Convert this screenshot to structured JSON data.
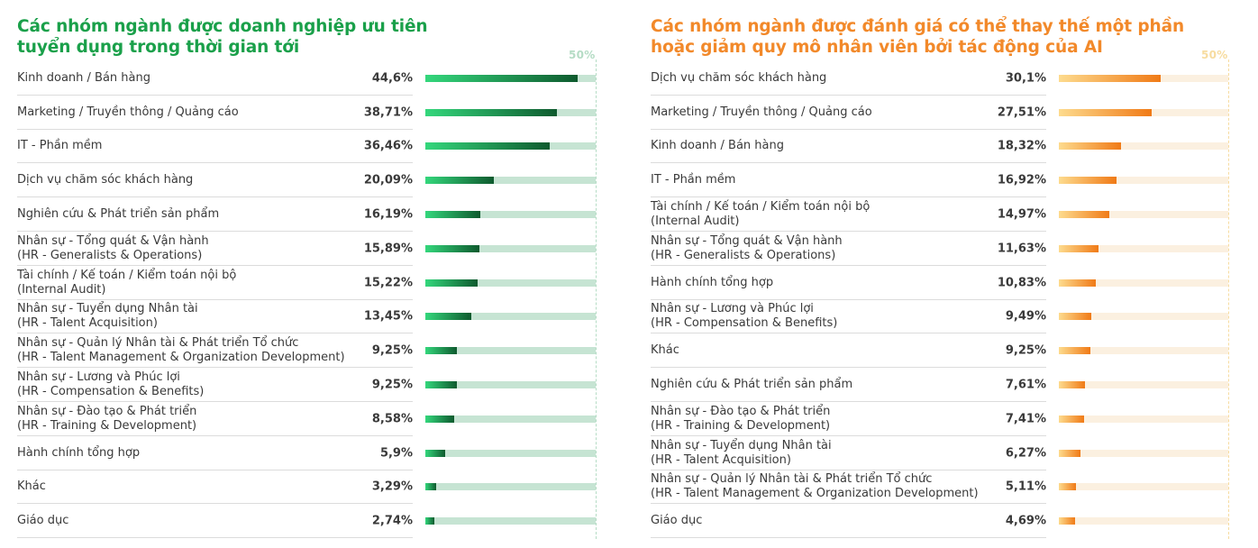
{
  "panels": [
    {
      "id": "left",
      "title_line1": "Các nhóm ngành được doanh nghiệp ưu tiên",
      "title_line2": "tuyển dụng trong thời gian tới",
      "scale_label": "50%",
      "colors": {
        "title": "#1aa04a",
        "scale": "#b5dcc5",
        "track": "#c6e4d3",
        "fill_start": "#34d77c",
        "fill_end": "#0e5a2e"
      }
    },
    {
      "id": "right",
      "title_line1": "Các nhóm ngành được đánh giá có thể thay thế một phần",
      "title_line2": "hoặc giảm quy mô nhân viên bởi tác động của AI",
      "scale_label": "50%",
      "colors": {
        "title": "#f2892a",
        "scale": "#f7dca0",
        "track": "#fbf0e0",
        "fill_start": "#fddb8e",
        "fill_end": "#f07a16"
      }
    }
  ],
  "chart_data": [
    {
      "type": "bar",
      "orientation": "horizontal",
      "title": "Các nhóm ngành được doanh nghiệp ưu tiên tuyển dụng trong thời gian tới",
      "xlim": [
        0,
        50
      ],
      "categories": [
        [
          "Kinh doanh / Bán hàng"
        ],
        [
          "Marketing / Truyền thông / Quảng cáo"
        ],
        [
          "IT - Phần mềm"
        ],
        [
          "Dịch vụ chăm sóc khách hàng"
        ],
        [
          "Nghiên cứu & Phát triển sản phẩm"
        ],
        [
          "Nhân sự - Tổng quát & Vận hành",
          "(HR - Generalists & Operations)"
        ],
        [
          "Tài chính / Kế toán / Kiểm toán nội bộ",
          "(Internal Audit)"
        ],
        [
          "Nhân sự - Tuyển dụng Nhân tài",
          "(HR - Talent Acquisition)"
        ],
        [
          "Nhân sự - Quản lý Nhân tài & Phát triển Tổ chức",
          "(HR - Talent Management & Organization Development)"
        ],
        [
          "Nhân sự - Lương và Phúc lợi",
          "(HR - Compensation & Benefits)"
        ],
        [
          "Nhân sự - Đào tạo & Phát triển",
          "(HR - Training & Development)"
        ],
        [
          "Hành chính tổng hợp"
        ],
        [
          "Khác"
        ],
        [
          "Giáo dục"
        ]
      ],
      "values": [
        44.6,
        38.71,
        36.46,
        20.09,
        16.19,
        15.89,
        15.22,
        13.45,
        9.25,
        9.25,
        8.58,
        5.9,
        3.29,
        2.74
      ],
      "value_labels": [
        "44,6%",
        "38,71%",
        "36,46%",
        "20,09%",
        "16,19%",
        "15,89%",
        "15,22%",
        "13,45%",
        "9,25%",
        "9,25%",
        "8,58%",
        "5,9%",
        "3,29%",
        "2,74%"
      ]
    },
    {
      "type": "bar",
      "orientation": "horizontal",
      "title": "Các nhóm ngành được đánh giá có thể thay thế một phần hoặc giảm quy mô nhân viên bởi tác động của AI",
      "xlim": [
        0,
        50
      ],
      "categories": [
        [
          "Dịch vụ chăm sóc khách hàng"
        ],
        [
          "Marketing / Truyền thông / Quảng cáo"
        ],
        [
          "Kinh doanh / Bán hàng"
        ],
        [
          "IT - Phần mềm"
        ],
        [
          "Tài chính / Kế toán / Kiểm toán nội bộ",
          "(Internal Audit)"
        ],
        [
          "Nhân sự - Tổng quát & Vận hành",
          "(HR - Generalists & Operations)"
        ],
        [
          "Hành chính tổng hợp"
        ],
        [
          "Nhân sự - Lương và Phúc lợi",
          "(HR - Compensation & Benefits)"
        ],
        [
          "Khác"
        ],
        [
          "Nghiên cứu & Phát triển sản phẩm"
        ],
        [
          "Nhân sự - Đào tạo & Phát triển",
          "(HR - Training & Development)"
        ],
        [
          "Nhân sự - Tuyển dụng Nhân tài",
          "(HR - Talent Acquisition)"
        ],
        [
          "Nhân sự - Quản lý Nhân tài & Phát triển Tổ chức",
          "(HR - Talent Management & Organization Development)"
        ],
        [
          "Giáo dục"
        ]
      ],
      "values": [
        30.1,
        27.51,
        18.32,
        16.92,
        14.97,
        11.63,
        10.83,
        9.49,
        9.25,
        7.61,
        7.41,
        6.27,
        5.11,
        4.69
      ],
      "value_labels": [
        "30,1%",
        "27,51%",
        "18,32%",
        "16,92%",
        "14,97%",
        "11,63%",
        "10,83%",
        "9,49%",
        "9,25%",
        "7,61%",
        "7,41%",
        "6,27%",
        "5,11%",
        "4,69%"
      ]
    }
  ]
}
